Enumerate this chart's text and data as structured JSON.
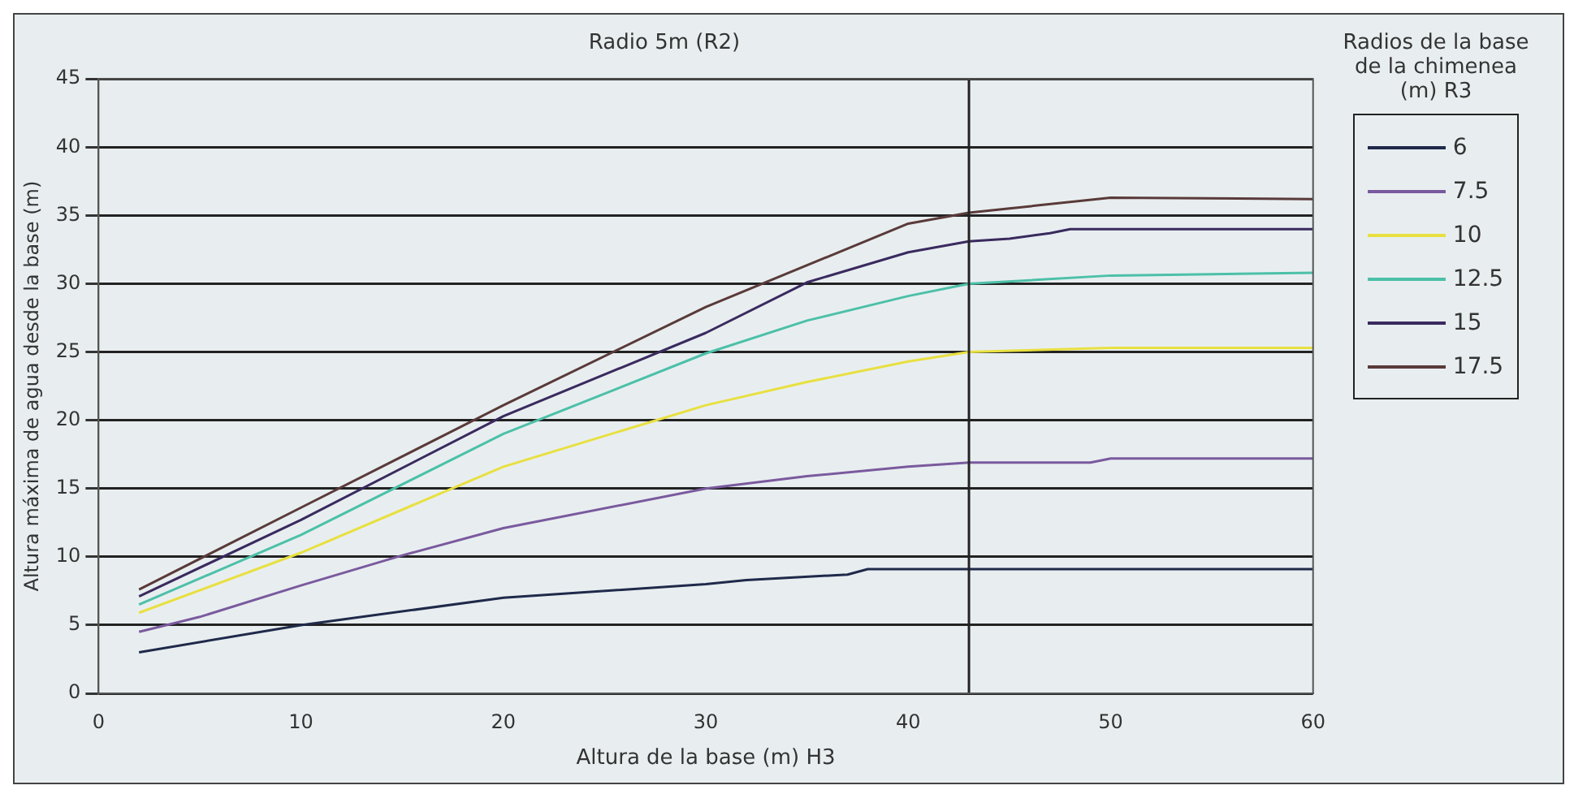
{
  "chart_data": {
    "type": "line",
    "title": "Radio 5m (R2)",
    "xlabel": "Altura de la base (m) H3",
    "ylabel": "Altura máxima de agua desde la base (m)",
    "legend_title": "Radios de la base de la chimenea (m) R3",
    "xlim": [
      0,
      60
    ],
    "xticks": [
      0,
      10,
      20,
      30,
      40,
      50,
      60
    ],
    "ylim": [
      0,
      45
    ],
    "yticks": [
      0,
      5,
      10,
      15,
      20,
      25,
      30,
      35,
      40,
      45
    ],
    "grid": "y",
    "legend": "right",
    "marker": "none",
    "line_style": "solid",
    "ref_lines": [
      {
        "axis": "x",
        "value": 43,
        "color": "#222222"
      }
    ],
    "series": [
      {
        "name": "6",
        "color": "#1f2a4a",
        "x": [
          2,
          10,
          20,
          30,
          32,
          37,
          38,
          60
        ],
        "values": [
          3.0,
          5.0,
          7.0,
          8.0,
          8.3,
          8.7,
          9.1,
          9.1
        ]
      },
      {
        "name": "7.5",
        "color": "#7a5a9e",
        "x": [
          2,
          5,
          10,
          15,
          20,
          30,
          35,
          40,
          43,
          49,
          50,
          60
        ],
        "values": [
          4.5,
          5.6,
          7.9,
          10.1,
          12.1,
          15.0,
          15.9,
          16.6,
          16.9,
          16.9,
          17.2,
          17.2
        ]
      },
      {
        "name": "10",
        "color": "#e8e040",
        "x": [
          2,
          10,
          20,
          30,
          35,
          40,
          43,
          50,
          60
        ],
        "values": [
          5.9,
          10.3,
          16.6,
          21.1,
          22.8,
          24.3,
          25.0,
          25.3,
          25.3
        ]
      },
      {
        "name": "12.5",
        "color": "#4cc0a8",
        "x": [
          2,
          10,
          20,
          30,
          35,
          40,
          43,
          50,
          55,
          60
        ],
        "values": [
          6.5,
          11.6,
          19.0,
          24.9,
          27.3,
          29.1,
          30.0,
          30.6,
          30.7,
          30.8
        ]
      },
      {
        "name": "15",
        "color": "#3a2a5e",
        "x": [
          2,
          10,
          20,
          30,
          35,
          40,
          43,
          45,
          47,
          48,
          60
        ],
        "values": [
          7.1,
          12.7,
          20.3,
          26.4,
          30.1,
          32.3,
          33.1,
          33.3,
          33.7,
          34.0,
          34.0
        ]
      },
      {
        "name": "17.5",
        "color": "#5a3a3a",
        "x": [
          2,
          10,
          20,
          30,
          40,
          43,
          50,
          60
        ],
        "values": [
          7.6,
          13.6,
          21.1,
          28.3,
          34.4,
          35.2,
          36.3,
          36.2
        ]
      }
    ]
  }
}
